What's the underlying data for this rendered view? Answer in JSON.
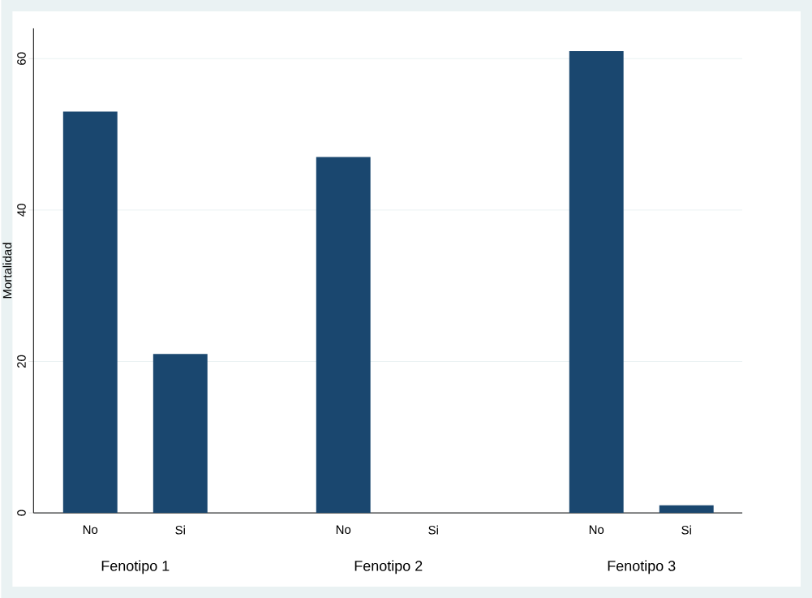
{
  "chart_data": {
    "type": "bar",
    "categories": [
      "No",
      "Si",
      "No",
      "Si",
      "No",
      "Si"
    ],
    "values": [
      53,
      21,
      47,
      0,
      61,
      1
    ],
    "color": "#1a476f",
    "ylabel": "Mortalidad",
    "ylim": [
      0,
      64
    ],
    "yticks": [
      0,
      20,
      40,
      60
    ],
    "grid": "y",
    "annotations": [
      "Fenotipo 1",
      "Fenotipo 2",
      "Fenotipo 3"
    ]
  }
}
